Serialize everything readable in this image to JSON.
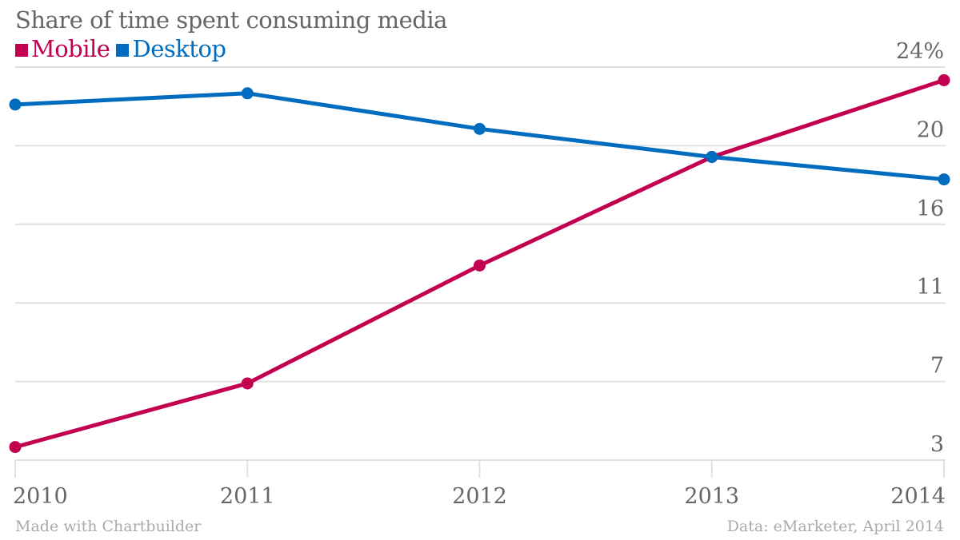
{
  "chart_data": {
    "type": "line",
    "title": "Share of time spent consuming media",
    "x": [
      "2010",
      "2011",
      "2012",
      "2013",
      "2014"
    ],
    "series": [
      {
        "name": "Mobile",
        "color": "#c2004f",
        "values": [
          3.7,
          7.1,
          13.4,
          19.2,
          23.3
        ]
      },
      {
        "name": "Desktop",
        "color": "#006cbf",
        "values": [
          22.0,
          22.6,
          20.7,
          19.2,
          18.0
        ]
      }
    ],
    "ylim": [
      3,
      24
    ],
    "yticks": [
      3,
      7.2,
      11.4,
      15.6,
      19.8,
      24
    ],
    "ytick_labels": [
      "3",
      "7",
      "11",
      "16",
      "20",
      "24%"
    ],
    "grid": true,
    "legend": "top-left"
  },
  "footer": {
    "left": "Made with Chartbuilder",
    "right": "Data: eMarketer, April 2014"
  }
}
